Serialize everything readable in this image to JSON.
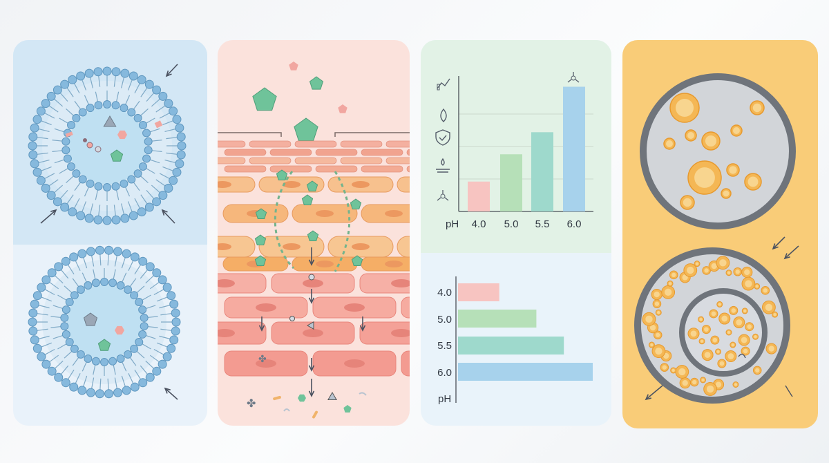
{
  "colors": {
    "panel1_top": "#d3e7f5",
    "panel1_bottom": "#e9f2fa",
    "panel2": "#fbe2dc",
    "panel3_top": "#e2f2e6",
    "panel3_bottom": "#e9f3fa",
    "panel4": "#f9cc78",
    "bar_red": "#f7c4c1",
    "bar_green": "#b6e0b8",
    "bar_teal": "#9ed9cc",
    "bar_blue": "#a7d2ec",
    "lipid_head": "#86b9dd",
    "hexagon_green": "#6fc39a",
    "droplet_orange": "#f4b755"
  },
  "icons": [
    "trend-chart-icon",
    "droplet-icon",
    "shield-check-icon",
    "water-level-icon",
    "molecule-icon"
  ],
  "chart_data": [
    {
      "type": "bar",
      "orientation": "vertical",
      "categories": [
        "4.0",
        "5.0",
        "5.5",
        "6.0"
      ],
      "values": [
        0.23,
        0.44,
        0.61,
        0.96
      ],
      "colors": [
        "#f7c4c1",
        "#b6e0b8",
        "#9ed9cc",
        "#a7d2ec"
      ],
      "xlabel": "pH",
      "grid": true
    },
    {
      "type": "bar",
      "orientation": "horizontal",
      "categories": [
        "4.0",
        "5.0",
        "5.5",
        "6.0"
      ],
      "values": [
        0.31,
        0.58,
        0.78,
        0.99
      ],
      "colors": [
        "#f7c4c1",
        "#b6e0b8",
        "#9ed9cc",
        "#a7d2ec"
      ],
      "ylabel": "pH",
      "grid": false
    }
  ]
}
